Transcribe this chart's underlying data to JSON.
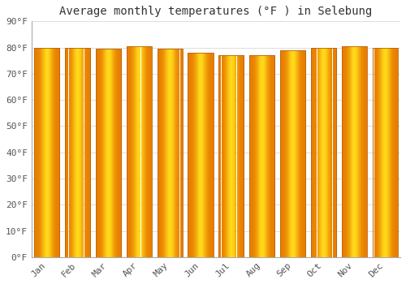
{
  "title": "Average monthly temperatures (°F ) in Selebung",
  "months": [
    "Jan",
    "Feb",
    "Mar",
    "Apr",
    "May",
    "Jun",
    "Jul",
    "Aug",
    "Sep",
    "Oct",
    "Nov",
    "Dec"
  ],
  "values": [
    80.0,
    80.0,
    79.5,
    80.5,
    79.5,
    78.0,
    77.0,
    77.0,
    79.0,
    80.0,
    80.5,
    80.0
  ],
  "bar_color_left": "#E87C00",
  "bar_color_center": "#FFD740",
  "bar_color_right": "#E87C00",
  "bar_edge_color": "#B8640A",
  "background_color": "#FFFFFF",
  "plot_bg_color": "#FFFFFF",
  "grid_color": "#DDDDDD",
  "ylabel_ticks": [
    "0°F",
    "10°F",
    "20°F",
    "30°F",
    "40°F",
    "50°F",
    "60°F",
    "70°F",
    "80°F",
    "90°F"
  ],
  "ytick_values": [
    0,
    10,
    20,
    30,
    40,
    50,
    60,
    70,
    80,
    90
  ],
  "ylim": [
    0,
    90
  ],
  "title_fontsize": 10,
  "tick_fontsize": 8,
  "font_color": "#555555"
}
